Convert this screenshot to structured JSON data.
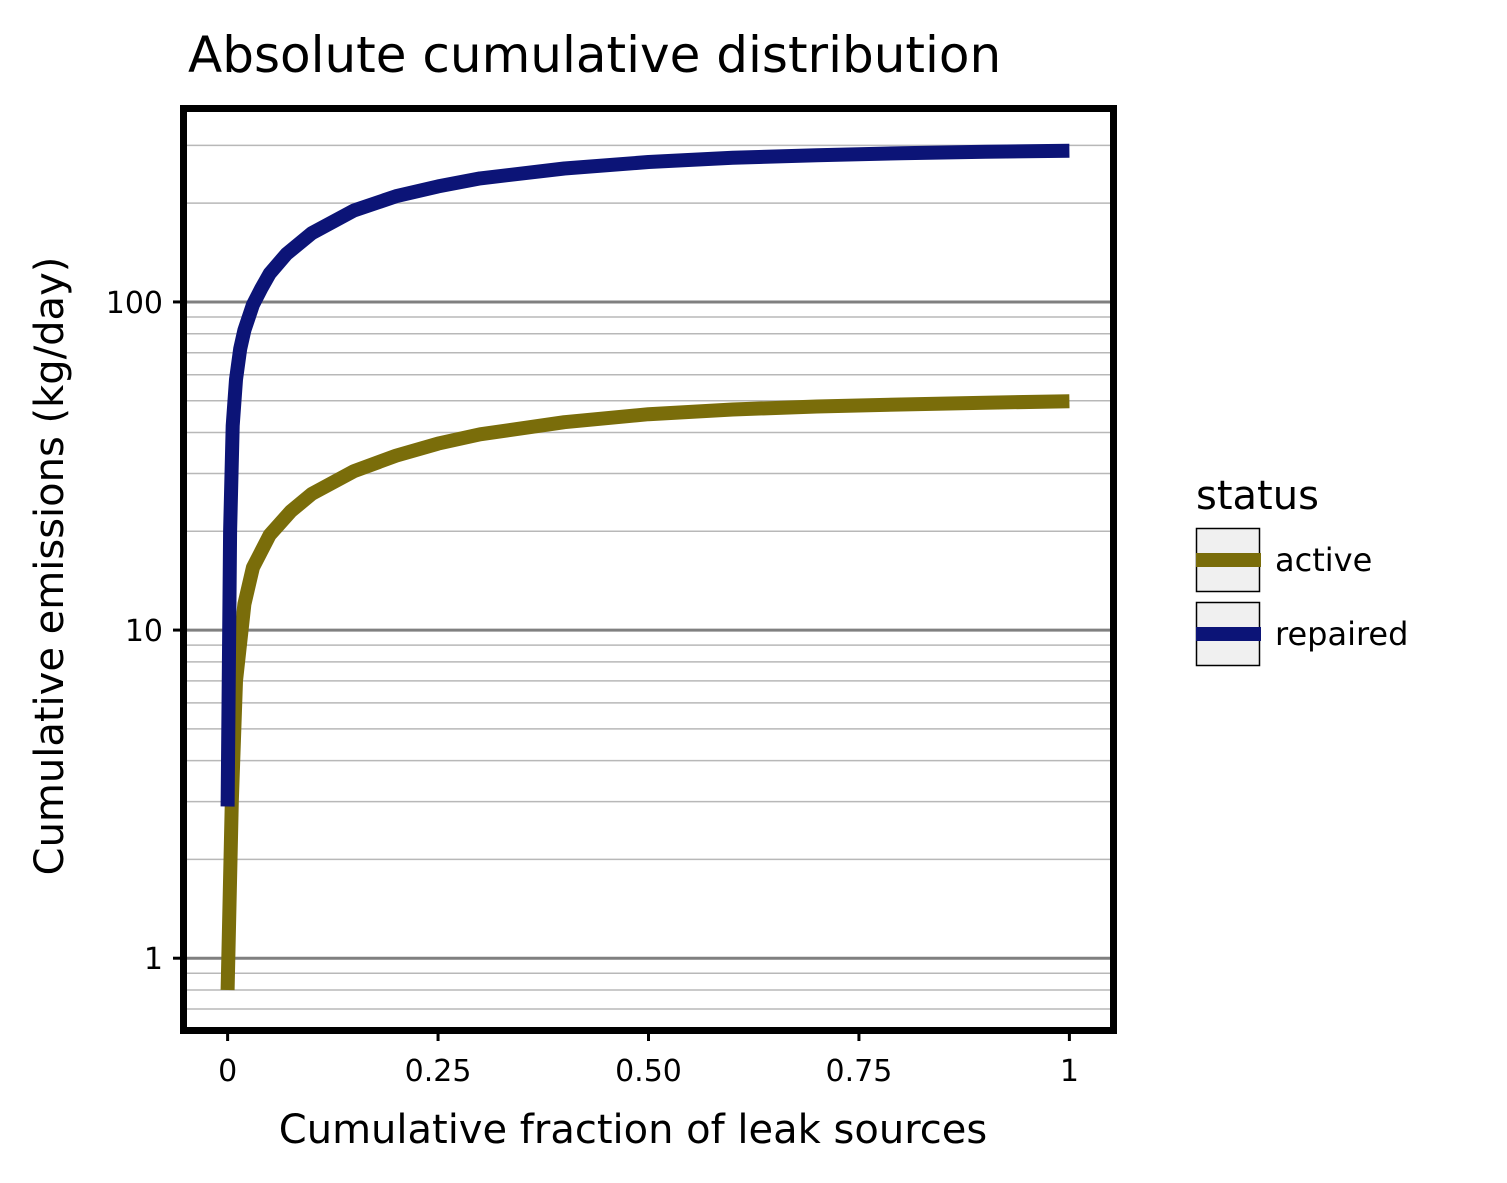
{
  "chart_data": {
    "type": "line",
    "title": "Absolute cumulative distribution",
    "xlabel": "Cumulative fraction of leak sources",
    "ylabel": "Cumulative emissions (kg/day)",
    "xlim": [
      -0.053,
      1.053
    ],
    "ylim": [
      0.6,
      390
    ],
    "yscale": "log",
    "grid": "horizontal major and minor",
    "x_ticks": [
      0,
      0.25,
      0.5,
      0.75,
      1
    ],
    "x_tick_labels": [
      "0",
      "0.25",
      "0.50",
      "0.75",
      "1"
    ],
    "y_ticks": [
      1,
      10,
      100
    ],
    "y_tick_labels": [
      "1",
      "10",
      "100"
    ],
    "legend": {
      "title": "status",
      "placement": "right"
    },
    "series": [
      {
        "name": "active",
        "color": "#7a6d0a",
        "x": [
          0,
          0.005,
          0.01,
          0.02,
          0.03,
          0.05,
          0.075,
          0.1,
          0.15,
          0.2,
          0.25,
          0.3,
          0.4,
          0.5,
          0.6,
          0.7,
          0.8,
          0.9,
          1.0
        ],
        "y": [
          0.8,
          3.0,
          7.0,
          12.0,
          15.5,
          19.5,
          23.0,
          26.0,
          30.5,
          34.0,
          37.0,
          39.5,
          43.0,
          45.5,
          47.0,
          48.0,
          48.7,
          49.3,
          49.8
        ]
      },
      {
        "name": "repaired",
        "color": "#0c1477",
        "x": [
          0,
          0.003,
          0.006,
          0.01,
          0.015,
          0.02,
          0.03,
          0.04,
          0.05,
          0.07,
          0.1,
          0.15,
          0.2,
          0.25,
          0.3,
          0.4,
          0.5,
          0.6,
          0.7,
          0.8,
          0.9,
          1.0
        ],
        "y": [
          2.9,
          20.0,
          42.0,
          58.0,
          72.0,
          82.0,
          98.0,
          110.0,
          122.0,
          140.0,
          162.0,
          190.0,
          210.0,
          225.0,
          238.0,
          255.0,
          267.0,
          275.0,
          280.0,
          284.0,
          287.0,
          289.0
        ]
      }
    ]
  }
}
